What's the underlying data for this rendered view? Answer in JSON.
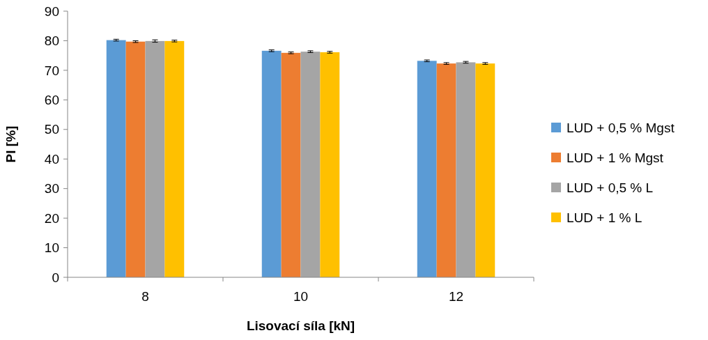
{
  "chart_data": {
    "type": "bar",
    "xlabel": "Lisovací síla [kN]",
    "ylabel": "PI [%]",
    "categories": [
      "8",
      "10",
      "12"
    ],
    "series": [
      {
        "name": "LUD + 0,5 % Mgst",
        "color": "#5b9bd5",
        "values": [
          80.2,
          76.6,
          73.2
        ],
        "errors": [
          0.3,
          0.3,
          0.3
        ]
      },
      {
        "name": "LUD + 1 % Mgst",
        "color": "#ed7d31",
        "values": [
          79.7,
          75.9,
          72.3
        ],
        "errors": [
          0.3,
          0.3,
          0.3
        ]
      },
      {
        "name": "LUD + 0,5 % L",
        "color": "#a5a5a5",
        "values": [
          79.9,
          76.3,
          72.7
        ],
        "errors": [
          0.4,
          0.3,
          0.3
        ]
      },
      {
        "name": "LUD + 1 % L",
        "color": "#ffc000",
        "values": [
          79.9,
          76.1,
          72.3
        ],
        "errors": [
          0.3,
          0.3,
          0.3
        ]
      }
    ],
    "ylim": [
      0,
      90
    ],
    "yticks": [
      0,
      10,
      20,
      30,
      40,
      50,
      60,
      70,
      80,
      90
    ],
    "grid": false,
    "legend": "right"
  }
}
